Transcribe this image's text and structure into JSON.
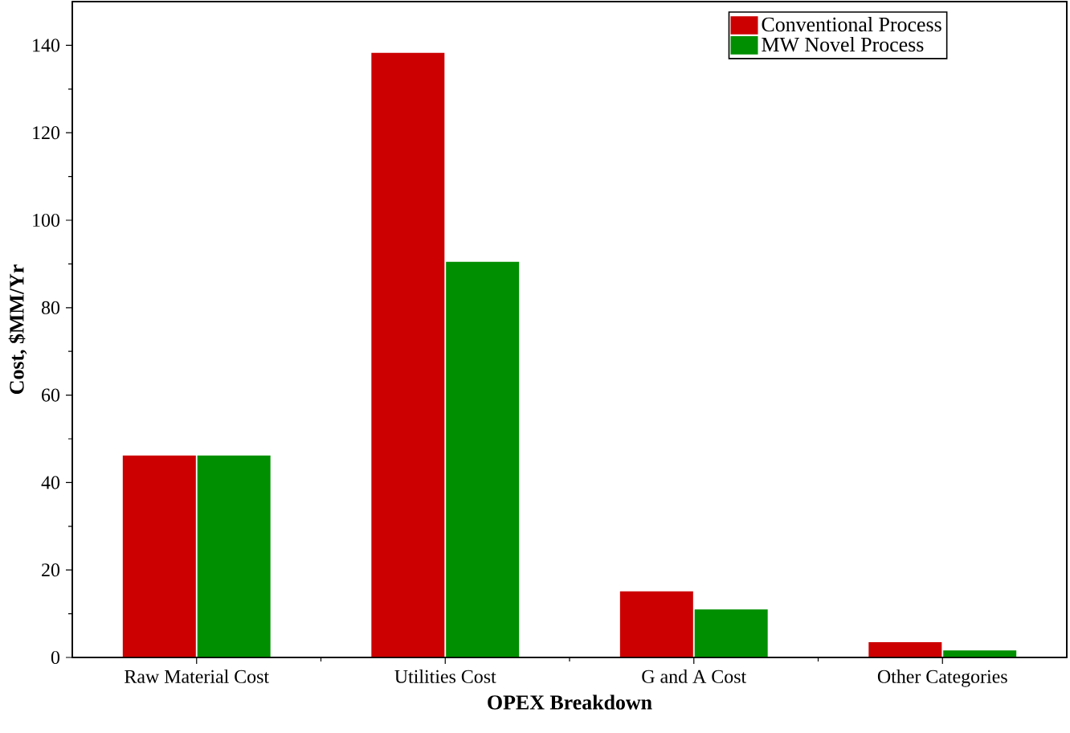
{
  "chart_data": {
    "type": "bar",
    "xlabel": "OPEX Breakdown",
    "ylabel": "Cost, $MM/Yr",
    "categories": [
      "Raw Material Cost",
      "Utilities Cost",
      "G and A Cost",
      "Other Categories"
    ],
    "series": [
      {
        "name": "Conventional Process",
        "color": "#cc0000",
        "values": [
          46.2,
          138.3,
          15.1,
          3.5
        ]
      },
      {
        "name": "MW Novel Process",
        "color": "#008f00",
        "values": [
          46.2,
          90.5,
          11.0,
          1.6
        ]
      }
    ],
    "ylim": [
      0,
      150
    ],
    "yticks": [
      0,
      20,
      40,
      60,
      80,
      100,
      120,
      140
    ],
    "grid": false,
    "legend": "top right"
  }
}
